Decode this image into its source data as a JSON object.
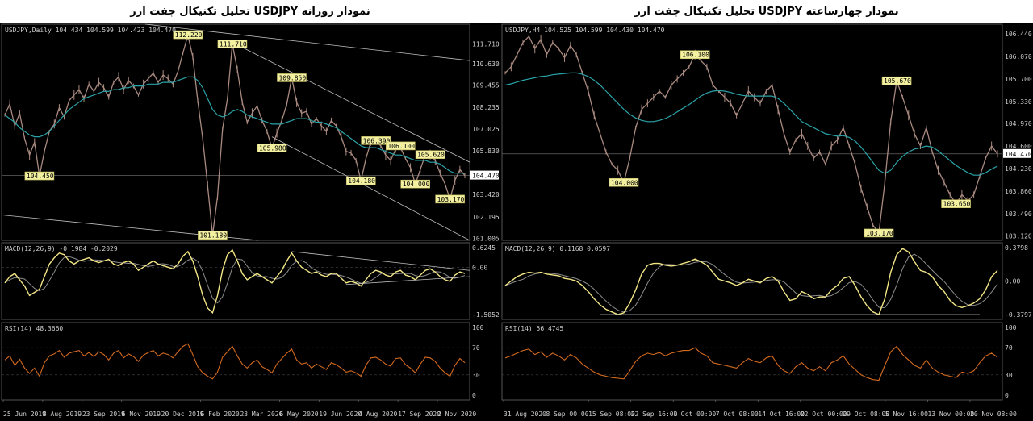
{
  "colors": {
    "background": "#000000",
    "price": "#a98a80",
    "ma": "#2aa3a8",
    "macd": "#f3e686",
    "signal": "#8c8c8c",
    "rsi": "#d46a1e",
    "annotation_bg": "#f3f0a0",
    "grid": "#3a3a3a",
    "trend": "#bfbfbf"
  },
  "chart_data": [
    {
      "id": "daily",
      "type": "line",
      "title": "تحلیل تکنیکال جفت ارز  USDJPY نمودار روزانه",
      "symbol_label": "USDJPY,Daily  104.434 104.599 104.423 104.470",
      "price_axis": [
        "111.710",
        "110.630",
        "109.455",
        "108.235",
        "107.025",
        "105.830",
        "104.470",
        "103.420",
        "102.195",
        "101.005"
      ],
      "current_price": "104.470",
      "ylim": [
        100.9,
        112.8
      ],
      "x_labels": [
        "25 Jun 2019",
        "8 Aug 2019",
        "23 Sep 2019",
        "6 Nov 2019",
        "20 Dec 2019",
        "6 Feb 2020",
        "23 Mar 2020",
        "6 May 2020",
        "19 Jun 2020",
        "4 Aug 2020",
        "17 Sep 2020",
        "2 Nov 2020"
      ],
      "price_series": [
        107.8,
        108.4,
        107.2,
        107.9,
        106.5,
        105.6,
        106.3,
        104.45,
        105.8,
        106.9,
        107.3,
        108.2,
        107.7,
        108.6,
        108.9,
        109.2,
        108.7,
        109.5,
        109.1,
        109.6,
        109.3,
        108.8,
        109.6,
        109.9,
        109.2,
        109.7,
        109.4,
        108.9,
        109.5,
        109.8,
        110.1,
        109.6,
        110.0,
        109.8,
        109.5,
        110.2,
        111.2,
        112.2,
        111.0,
        108.6,
        106.5,
        103.9,
        101.18,
        103.3,
        107.0,
        108.7,
        111.71,
        110.3,
        108.5,
        107.4,
        107.9,
        108.3,
        107.5,
        106.9,
        105.98,
        106.8,
        107.5,
        108.4,
        109.85,
        108.5,
        107.9,
        108.0,
        107.3,
        107.6,
        107.2,
        106.9,
        107.5,
        107.2,
        106.6,
        105.8,
        105.7,
        105.3,
        104.18,
        105.4,
        106.3,
        106.39,
        106.1,
        105.6,
        105.3,
        105.9,
        106.0,
        105.4,
        104.9,
        104.0,
        104.8,
        105.6,
        105.62,
        105.3,
        104.6,
        104.0,
        103.17,
        104.2,
        104.8,
        104.47
      ],
      "ma_series": [
        107.8,
        107.6,
        107.4,
        107.1,
        106.9,
        106.7,
        106.6,
        106.6,
        106.7,
        106.9,
        107.2,
        107.5,
        107.8,
        108.1,
        108.3,
        108.5,
        108.7,
        108.8,
        108.9,
        109.0,
        109.1,
        109.1,
        109.2,
        109.2,
        109.3,
        109.3,
        109.4,
        109.4,
        109.4,
        109.5,
        109.5,
        109.5,
        109.6,
        109.6,
        109.6,
        109.7,
        109.8,
        109.9,
        109.9,
        109.7,
        109.3,
        108.7,
        108.1,
        107.8,
        107.7,
        107.8,
        108.0,
        108.1,
        108.0,
        107.8,
        107.7,
        107.6,
        107.5,
        107.4,
        107.3,
        107.3,
        107.3,
        107.4,
        107.5,
        107.6,
        107.6,
        107.6,
        107.5,
        107.4,
        107.4,
        107.3,
        107.2,
        107.1,
        106.9,
        106.7,
        106.5,
        106.3,
        106.1,
        106.0,
        106.0,
        106.0,
        105.9,
        105.8,
        105.7,
        105.6,
        105.6,
        105.5,
        105.4,
        105.3,
        105.3,
        105.3,
        105.2,
        105.2,
        105.1,
        104.9,
        104.7,
        104.6,
        104.6,
        104.6
      ],
      "annotations": [
        {
          "text": "112.220",
          "i": 37,
          "price": 112.22
        },
        {
          "text": "111.710",
          "i": 46,
          "price": 111.71
        },
        {
          "text": "109.850",
          "i": 58,
          "price": 109.85
        },
        {
          "text": "105.980",
          "i": 54,
          "price": 105.98
        },
        {
          "text": "104.450",
          "i": 7,
          "price": 104.45
        },
        {
          "text": "106.390",
          "i": 75,
          "price": 106.39
        },
        {
          "text": "106.100",
          "i": 80,
          "price": 106.1
        },
        {
          "text": "105.620",
          "i": 86,
          "price": 105.62
        },
        {
          "text": "104.180",
          "i": 72,
          "price": 104.18
        },
        {
          "text": "104.000",
          "i": 83,
          "price": 104.0
        },
        {
          "text": "103.170",
          "i": 90,
          "price": 103.17
        },
        {
          "text": "101.180",
          "i": 42,
          "price": 101.18
        }
      ],
      "macd_label": "MACD(12,26,9) -0.1984 -0.2029",
      "macd_axis": [
        "0.6245",
        "0.00",
        "-1.5052"
      ],
      "macd_ylim": [
        -1.5052,
        0.6245
      ],
      "macd_series": [
        -0.5,
        -0.3,
        -0.2,
        -0.4,
        -0.6,
        -0.9,
        -0.8,
        -0.7,
        -0.3,
        0.1,
        0.3,
        0.45,
        0.4,
        0.2,
        0.1,
        0.2,
        0.25,
        0.3,
        0.2,
        0.15,
        0.2,
        0.25,
        0.1,
        0.05,
        0.15,
        0.2,
        0.1,
        -0.1,
        0.0,
        0.1,
        0.2,
        0.1,
        0.05,
        0.0,
        -0.05,
        0.1,
        0.35,
        0.5,
        0.2,
        -0.3,
        -0.9,
        -1.3,
        -1.45,
        -0.9,
        -0.1,
        0.4,
        0.55,
        0.2,
        -0.2,
        -0.4,
        -0.3,
        -0.2,
        -0.3,
        -0.4,
        -0.5,
        -0.3,
        -0.1,
        0.2,
        0.45,
        0.2,
        0.0,
        -0.1,
        -0.2,
        -0.15,
        -0.25,
        -0.3,
        -0.2,
        -0.2,
        -0.35,
        -0.5,
        -0.45,
        -0.5,
        -0.6,
        -0.4,
        -0.2,
        -0.1,
        -0.15,
        -0.25,
        -0.3,
        -0.15,
        -0.1,
        -0.25,
        -0.3,
        -0.4,
        -0.25,
        -0.1,
        -0.05,
        -0.15,
        -0.3,
        -0.4,
        -0.45,
        -0.25,
        -0.15,
        -0.2
      ],
      "rsi_label": "RSI(14) 48.3660",
      "rsi_axis": [
        "100",
        "70",
        "30",
        "0"
      ],
      "rsi_series": [
        52,
        58,
        44,
        53,
        40,
        32,
        40,
        28,
        48,
        58,
        61,
        66,
        56,
        62,
        64,
        66,
        58,
        63,
        57,
        64,
        60,
        52,
        62,
        66,
        55,
        61,
        57,
        50,
        59,
        63,
        66,
        58,
        62,
        60,
        55,
        64,
        72,
        76,
        60,
        42,
        33,
        28,
        24,
        34,
        56,
        64,
        72,
        58,
        46,
        40,
        48,
        52,
        42,
        38,
        33,
        46,
        54,
        62,
        68,
        52,
        46,
        48,
        40,
        46,
        42,
        38,
        48,
        45,
        40,
        34,
        36,
        33,
        28,
        44,
        55,
        56,
        52,
        46,
        43,
        54,
        55,
        45,
        40,
        33,
        46,
        56,
        55,
        50,
        40,
        33,
        28,
        44,
        54,
        48
      ]
    },
    {
      "id": "h4",
      "type": "line",
      "title": "تحلیل تکنیکال جفت ارز  USDJPY نمودار چهارساعته",
      "symbol_label": "USDJPY,H4  104.525 104.599 104.430 104.470",
      "price_axis": [
        "106.440",
        "106.070",
        "105.700",
        "105.330",
        "104.970",
        "104.600",
        "104.470",
        "104.230",
        "103.860",
        "103.490",
        "103.120"
      ],
      "current_price": "104.470",
      "ylim": [
        103.05,
        106.6
      ],
      "x_labels": [
        "31 Aug 2020",
        "8 Sep 00:00",
        "15 Sep 08:00",
        "22 Sep 16:00",
        "1 Oct 00:00",
        "7 Oct 08:00",
        "14 Oct 16:00",
        "22 Oct 00:00",
        "29 Oct 08:00",
        "5 Nov 16:00",
        "13 Nov 00:00",
        "20 Nov 08:00"
      ],
      "price_series": [
        105.8,
        105.9,
        106.1,
        106.3,
        106.4,
        106.2,
        106.35,
        106.1,
        106.3,
        106.2,
        106.05,
        106.25,
        106.1,
        105.8,
        105.5,
        105.1,
        104.8,
        104.5,
        104.3,
        104.2,
        104.0,
        104.4,
        104.9,
        105.2,
        105.3,
        105.4,
        105.5,
        105.4,
        105.6,
        105.7,
        105.8,
        105.9,
        106.1,
        106.0,
        105.9,
        105.6,
        105.5,
        105.4,
        105.3,
        105.1,
        105.3,
        105.5,
        105.4,
        105.3,
        105.5,
        105.6,
        105.2,
        104.8,
        104.5,
        104.7,
        104.8,
        104.6,
        104.4,
        104.5,
        104.3,
        104.6,
        104.7,
        104.9,
        104.6,
        104.3,
        103.9,
        103.6,
        103.3,
        103.17,
        104.0,
        105.0,
        105.67,
        105.4,
        105.1,
        104.8,
        104.6,
        104.9,
        104.5,
        104.2,
        104.0,
        103.8,
        103.65,
        103.8,
        103.7,
        103.8,
        104.1,
        104.4,
        104.6,
        104.47
      ],
      "ma_series": [
        105.6,
        105.62,
        105.65,
        105.68,
        105.7,
        105.72,
        105.74,
        105.75,
        105.77,
        105.78,
        105.79,
        105.8,
        105.8,
        105.78,
        105.74,
        105.68,
        105.6,
        105.5,
        105.4,
        105.3,
        105.2,
        105.12,
        105.06,
        105.02,
        105.0,
        105.0,
        105.02,
        105.05,
        105.1,
        105.16,
        105.22,
        105.28,
        105.35,
        105.42,
        105.47,
        105.5,
        105.51,
        105.5,
        105.48,
        105.45,
        105.43,
        105.42,
        105.42,
        105.42,
        105.42,
        105.42,
        105.38,
        105.3,
        105.2,
        105.1,
        105.0,
        104.95,
        104.9,
        104.85,
        104.8,
        104.78,
        104.76,
        104.77,
        104.74,
        104.68,
        104.58,
        104.46,
        104.33,
        104.2,
        104.15,
        104.2,
        104.33,
        104.43,
        104.5,
        104.55,
        104.57,
        104.6,
        104.58,
        104.52,
        104.44,
        104.36,
        104.28,
        104.22,
        104.16,
        104.12,
        104.12,
        104.16,
        104.22,
        104.27
      ],
      "annotations": [
        {
          "text": "106.100",
          "i": 32,
          "price": 106.1
        },
        {
          "text": "105.670",
          "i": 66,
          "price": 105.67
        },
        {
          "text": "104.000",
          "i": 20,
          "price": 104.0
        },
        {
          "text": "103.650",
          "i": 76,
          "price": 103.65
        },
        {
          "text": "103.170",
          "i": 63,
          "price": 103.17
        }
      ],
      "macd_label": "MACD(12,26,9) 0.1168 0.0597",
      "macd_axis": [
        "0.3798",
        "0.00",
        "-0.3797"
      ],
      "macd_ylim": [
        -0.3797,
        0.3798
      ],
      "macd_series": [
        -0.05,
        0.0,
        0.05,
        0.08,
        0.1,
        0.09,
        0.1,
        0.08,
        0.07,
        0.06,
        0.03,
        0.02,
        0.0,
        -0.05,
        -0.12,
        -0.2,
        -0.27,
        -0.32,
        -0.35,
        -0.38,
        -0.36,
        -0.25,
        -0.1,
        0.08,
        0.18,
        0.2,
        0.2,
        0.18,
        0.17,
        0.18,
        0.2,
        0.22,
        0.25,
        0.22,
        0.18,
        0.1,
        0.02,
        0.0,
        -0.02,
        -0.05,
        -0.02,
        0.02,
        0.0,
        -0.02,
        0.03,
        0.05,
        0.0,
        -0.12,
        -0.22,
        -0.2,
        -0.12,
        -0.15,
        -0.2,
        -0.18,
        -0.18,
        -0.1,
        -0.05,
        0.03,
        0.05,
        -0.05,
        -0.18,
        -0.28,
        -0.35,
        -0.38,
        -0.2,
        0.1,
        0.3,
        0.37,
        0.33,
        0.22,
        0.12,
        0.1,
        0.05,
        -0.05,
        -0.12,
        -0.22,
        -0.28,
        -0.3,
        -0.28,
        -0.25,
        -0.2,
        -0.1,
        0.05,
        0.12
      ],
      "rsi_label": "RSI(14) 56.4745",
      "rsi_axis": [
        "100",
        "70",
        "30",
        "0"
      ],
      "rsi_series": [
        55,
        58,
        62,
        66,
        68,
        60,
        64,
        56,
        62,
        58,
        52,
        60,
        55,
        46,
        40,
        34,
        30,
        28,
        26,
        25,
        24,
        36,
        50,
        58,
        62,
        60,
        63,
        58,
        62,
        64,
        66,
        66,
        70,
        62,
        58,
        48,
        46,
        44,
        42,
        40,
        48,
        54,
        50,
        48,
        55,
        58,
        44,
        36,
        32,
        42,
        48,
        40,
        36,
        42,
        36,
        48,
        52,
        58,
        46,
        38,
        30,
        26,
        23,
        22,
        44,
        64,
        72,
        60,
        52,
        44,
        40,
        52,
        40,
        34,
        30,
        28,
        26,
        34,
        32,
        36,
        48,
        58,
        62,
        56
      ]
    }
  ]
}
